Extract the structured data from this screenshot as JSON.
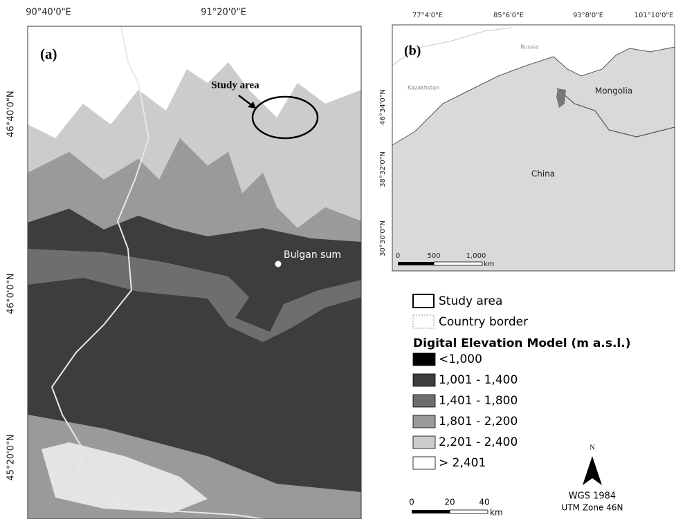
{
  "panel_a": {
    "label": "(a)",
    "top_ticks": [
      "90°40'0\"E",
      "91°20'0\"E"
    ],
    "left_ticks": [
      "46°40'0\"N",
      "46°0'0\"N",
      "45°20'0\"N"
    ],
    "study_area": "Study area",
    "town": "Bulgan sum",
    "scale": [
      "0",
      "20",
      "40"
    ],
    "scale_unit": "km"
  },
  "panel_b": {
    "label": "(b)",
    "top_ticks": [
      "77°4'0\"E",
      "85°6'0\"E",
      "93°8'0\"E",
      "101°10'0\"E"
    ],
    "left_ticks": [
      "46°34'0\"N",
      "38°32'0\"N",
      "30°30'0\"N"
    ],
    "countries": [
      "Russia",
      "Kazakhstan",
      "Mongolia",
      "China"
    ],
    "scale": [
      "0",
      "500",
      "1,000"
    ],
    "scale_unit": "km"
  },
  "legend": {
    "study_area": "Study area",
    "country_border": "Country border",
    "title": "Digital Elevation Model (m a.s.l.)",
    "classes": [
      {
        "label": "<1,000",
        "color": "#000000"
      },
      {
        "label": "1,001 - 1,400",
        "color": "#3d3d3d"
      },
      {
        "label": "1,401 - 1,800",
        "color": "#6e6e6e"
      },
      {
        "label": "1,801 - 2,200",
        "color": "#9a9a9a"
      },
      {
        "label": "2,201 - 2,400",
        "color": "#cccccc"
      },
      {
        "label": "> 2,401",
        "color": "#ffffff"
      }
    ]
  },
  "projection": {
    "north": "N",
    "datum": "WGS 1984",
    "zone": "UTM Zone 46N"
  }
}
